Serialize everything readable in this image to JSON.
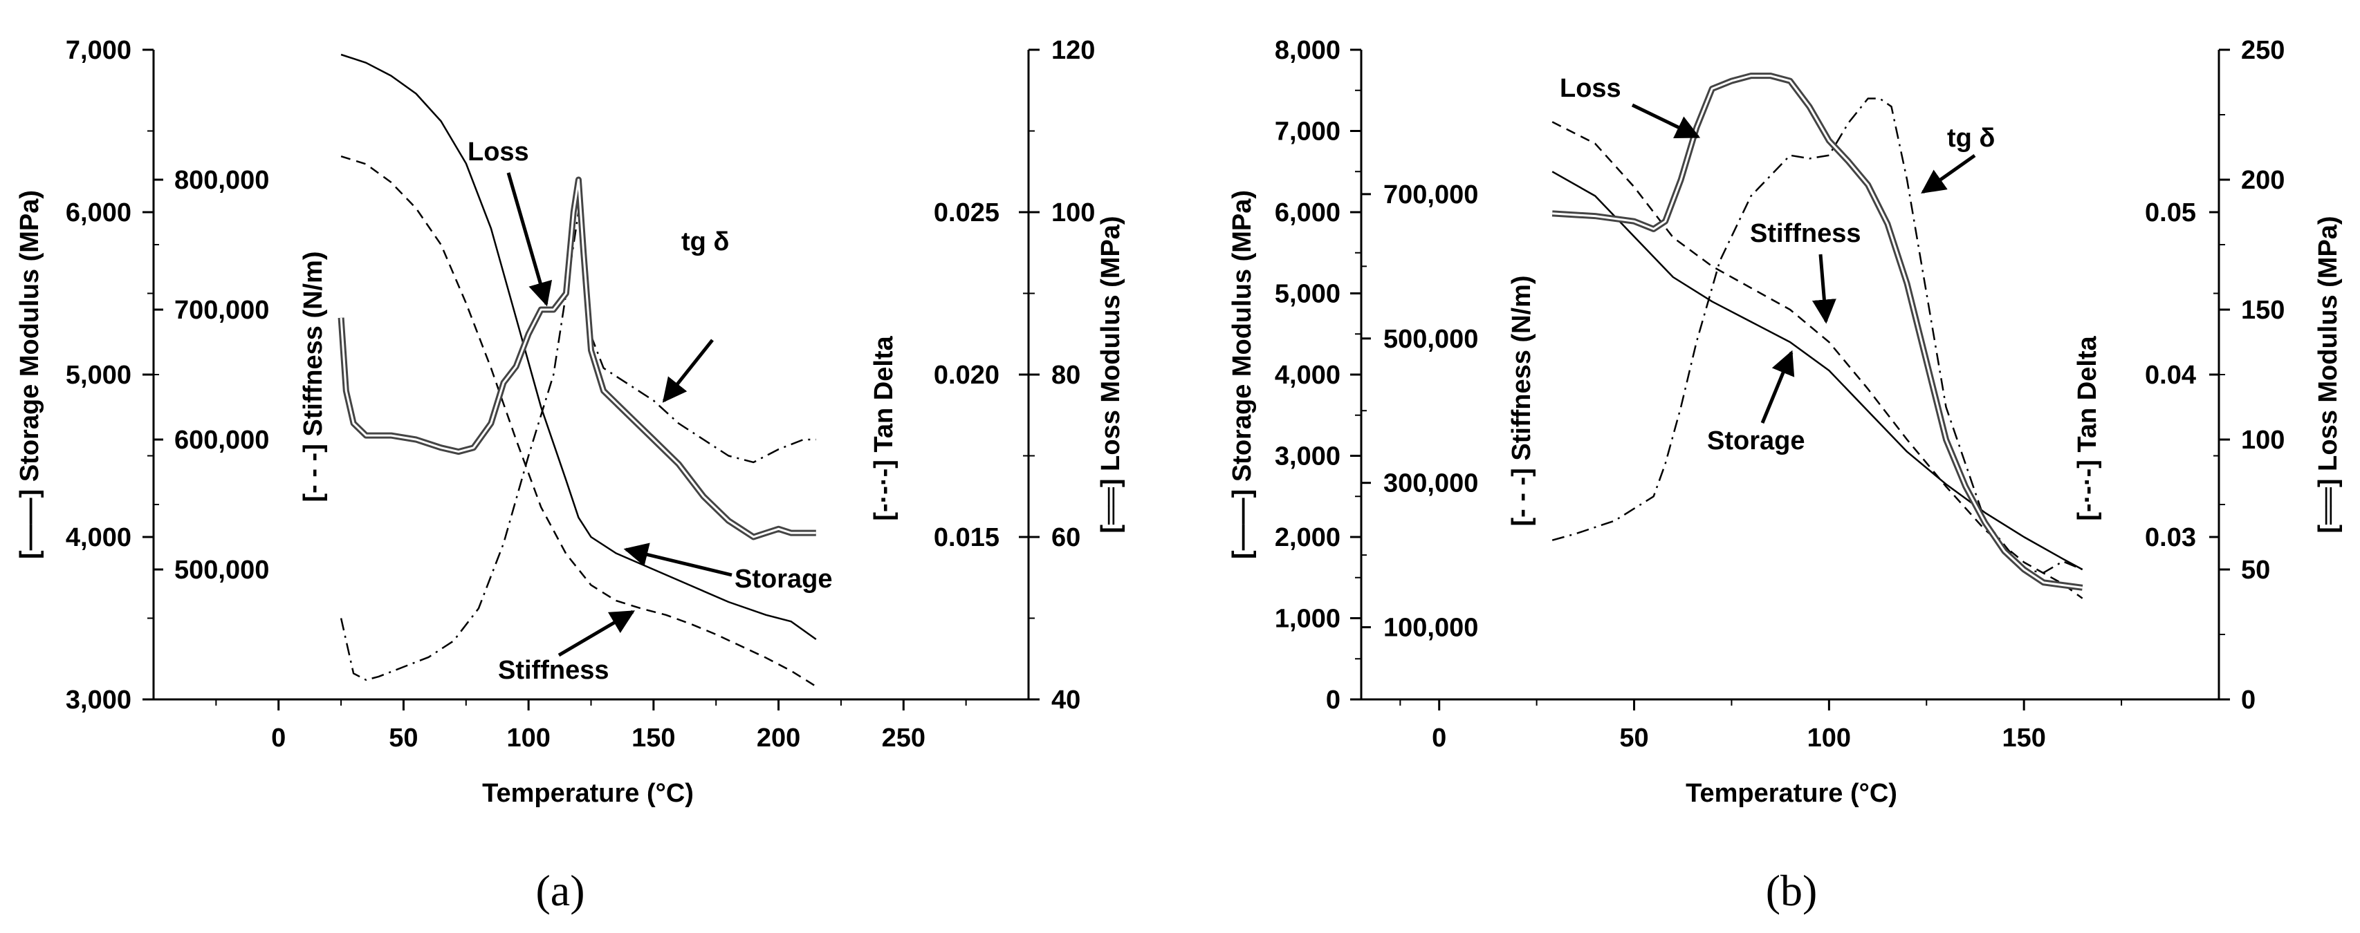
{
  "chart_data": [
    {
      "type": "line",
      "panel_label": "(a)",
      "xlabel": "Temperature (°C)",
      "xlim": [
        -50,
        300
      ],
      "xticks": [
        0,
        50,
        100,
        150,
        200,
        250
      ],
      "xtick_labels": [
        "0",
        "50",
        "100",
        "150",
        "200",
        "250"
      ],
      "grid": false,
      "axes": {
        "storage": {
          "label": "[——] Storage Modulus (MPa)",
          "lim": [
            3000,
            7000
          ],
          "ticks": [
            3000,
            4000,
            5000,
            6000,
            7000
          ],
          "tick_labels": [
            "3,000",
            "4,000",
            "5,000",
            "6,000",
            "7,000"
          ]
        },
        "stiffness": {
          "label": "[- - -] Stiffness (N/m)",
          "lim": [
            400000,
            900000
          ],
          "ticks": [
            500000,
            600000,
            700000,
            800000
          ],
          "tick_labels": [
            "500,000",
            "600,000",
            "700,000",
            "800,000"
          ]
        },
        "tan_delta": {
          "label": "[-·-·-] Tan Delta",
          "lim": [
            0.01,
            0.03
          ],
          "ticks": [
            0.015,
            0.02,
            0.025
          ],
          "tick_labels": [
            "0.015",
            "0.020",
            "0.025"
          ]
        },
        "loss": {
          "label": "[══] Loss Modulus (MPa)",
          "lim": [
            40,
            120
          ],
          "ticks": [
            40,
            60,
            80,
            100,
            120
          ],
          "tick_labels": [
            "40",
            "60",
            "80",
            "100",
            "120"
          ]
        }
      },
      "series": [
        {
          "key": "storage",
          "axis": "storage",
          "style": "solid",
          "x": [
            25,
            35,
            45,
            55,
            65,
            75,
            85,
            95,
            105,
            115,
            120,
            125,
            135,
            150,
            165,
            180,
            195,
            205,
            215
          ],
          "y": [
            6970,
            6920,
            6840,
            6730,
            6560,
            6300,
            5900,
            5350,
            4800,
            4350,
            4120,
            4000,
            3900,
            3800,
            3700,
            3600,
            3520,
            3480,
            3370
          ]
        },
        {
          "key": "stiffness",
          "axis": "stiffness",
          "style": "dashed",
          "x": [
            25,
            35,
            45,
            55,
            65,
            75,
            85,
            95,
            105,
            115,
            125,
            135,
            145,
            155,
            165,
            175,
            185,
            195,
            205,
            215
          ],
          "y": [
            818000,
            812000,
            798000,
            778000,
            750000,
            705000,
            655000,
            600000,
            548000,
            512000,
            488000,
            476000,
            470000,
            465000,
            458000,
            450000,
            441000,
            432000,
            422000,
            410000
          ]
        },
        {
          "key": "tan_delta",
          "axis": "tan_delta",
          "style": "dashdot",
          "x": [
            25,
            30,
            35,
            40,
            50,
            60,
            70,
            80,
            90,
            100,
            110,
            115,
            120,
            125,
            130,
            140,
            150,
            160,
            170,
            180,
            190,
            200,
            210,
            215
          ],
          "y": [
            0.0125,
            0.0108,
            0.0106,
            0.0107,
            0.011,
            0.0113,
            0.0118,
            0.0128,
            0.0148,
            0.0175,
            0.02,
            0.0225,
            0.025,
            0.0212,
            0.0202,
            0.0197,
            0.0192,
            0.0185,
            0.018,
            0.0175,
            0.0173,
            0.0177,
            0.018,
            0.018
          ]
        },
        {
          "key": "loss",
          "axis": "loss",
          "style": "double",
          "x": [
            25,
            27,
            30,
            35,
            45,
            55,
            65,
            72,
            78,
            85,
            90,
            95,
            100,
            105,
            110,
            115,
            118,
            120,
            122,
            125,
            130,
            140,
            150,
            160,
            170,
            180,
            190,
            195,
            200,
            205,
            215
          ],
          "y": [
            87,
            78,
            74,
            72.5,
            72.5,
            72,
            71,
            70.5,
            71,
            74,
            79,
            81,
            85,
            88,
            88,
            90,
            100,
            104,
            95,
            83,
            78,
            75,
            72,
            69,
            65,
            62,
            60,
            60.5,
            61,
            60.5,
            60.5
          ]
        }
      ],
      "annotations": [
        {
          "text": "Loss",
          "target": "loss"
        },
        {
          "text": "tg δ",
          "target": "tan_delta"
        },
        {
          "text": "Storage",
          "target": "storage"
        },
        {
          "text": "Stiffness",
          "target": "stiffness"
        }
      ]
    },
    {
      "type": "line",
      "panel_label": "(b)",
      "xlabel": "Temperature (°C)",
      "xlim": [
        -20,
        200
      ],
      "xticks": [
        0,
        50,
        100,
        150
      ],
      "xtick_labels": [
        "0",
        "50",
        "100",
        "150"
      ],
      "grid": false,
      "axes": {
        "storage": {
          "label": "[——] Storage Modulus (MPa)",
          "lim": [
            0,
            8000
          ],
          "ticks": [
            0,
            1000,
            2000,
            3000,
            4000,
            5000,
            6000,
            7000,
            8000
          ],
          "tick_labels": [
            "0",
            "1,000",
            "2,000",
            "3,000",
            "4,000",
            "5,000",
            "6,000",
            "7,000",
            "8,000"
          ]
        },
        "stiffness": {
          "label": "[- - -] Stiffness (N/m)",
          "lim": [
            0,
            900000
          ],
          "ticks": [
            100000,
            300000,
            500000,
            700000
          ],
          "tick_labels": [
            "100,000",
            "300,000",
            "500,000",
            "700,000"
          ]
        },
        "tan_delta": {
          "label": "[-·-·-] Tan Delta",
          "lim": [
            0.02,
            0.06
          ],
          "ticks": [
            0.03,
            0.04,
            0.05
          ],
          "tick_labels": [
            "0.03",
            "0.04",
            "0.05"
          ]
        },
        "loss": {
          "label": "[══] Loss Modulus (MPa)",
          "lim": [
            0,
            250
          ],
          "ticks": [
            0,
            50,
            100,
            150,
            200,
            250
          ],
          "tick_labels": [
            "0",
            "50",
            "100",
            "150",
            "200",
            "250"
          ]
        }
      },
      "series": [
        {
          "key": "storage",
          "axis": "storage",
          "style": "solid",
          "x": [
            29,
            40,
            50,
            60,
            70,
            80,
            90,
            100,
            110,
            120,
            130,
            140,
            150,
            160,
            165
          ],
          "y": [
            6500,
            6200,
            5700,
            5200,
            4900,
            4650,
            4400,
            4050,
            3550,
            3050,
            2650,
            2300,
            2000,
            1730,
            1600
          ]
        },
        {
          "key": "stiffness",
          "axis": "stiffness",
          "style": "dashed",
          "x": [
            29,
            40,
            50,
            60,
            70,
            80,
            90,
            100,
            110,
            120,
            130,
            140,
            150,
            160,
            165
          ],
          "y": [
            800000,
            770000,
            710000,
            640000,
            600000,
            570000,
            540000,
            495000,
            430000,
            360000,
            295000,
            235000,
            190000,
            160000,
            140000
          ]
        },
        {
          "key": "tan_delta",
          "axis": "tan_delta",
          "style": "dashdot",
          "x": [
            29,
            35,
            45,
            55,
            58,
            62,
            66,
            72,
            80,
            90,
            95,
            100,
            105,
            110,
            113,
            116,
            120,
            125,
            130,
            140,
            150,
            155,
            160,
            165
          ],
          "y": [
            0.0298,
            0.0302,
            0.031,
            0.0325,
            0.0345,
            0.038,
            0.042,
            0.047,
            0.051,
            0.0535,
            0.0533,
            0.0535,
            0.0555,
            0.057,
            0.057,
            0.0565,
            0.052,
            0.045,
            0.038,
            0.031,
            0.028,
            0.0278,
            0.0285,
            0.028
          ]
        },
        {
          "key": "loss",
          "axis": "loss",
          "style": "double",
          "x": [
            29,
            40,
            50,
            55,
            58,
            62,
            66,
            70,
            75,
            80,
            85,
            90,
            95,
            100,
            105,
            110,
            115,
            120,
            125,
            130,
            135,
            140,
            145,
            150,
            155,
            160,
            165
          ],
          "y": [
            187,
            186,
            184,
            181,
            184,
            200,
            220,
            235,
            238,
            240,
            240,
            238,
            228,
            215,
            207,
            198,
            183,
            160,
            130,
            100,
            82,
            68,
            57,
            50,
            45,
            44,
            43
          ]
        }
      ],
      "annotations": [
        {
          "text": "Loss",
          "target": "loss"
        },
        {
          "text": "tg δ",
          "target": "tan_delta"
        },
        {
          "text": "Stiffness",
          "target": "stiffness"
        },
        {
          "text": "Storage",
          "target": "storage"
        }
      ]
    }
  ]
}
